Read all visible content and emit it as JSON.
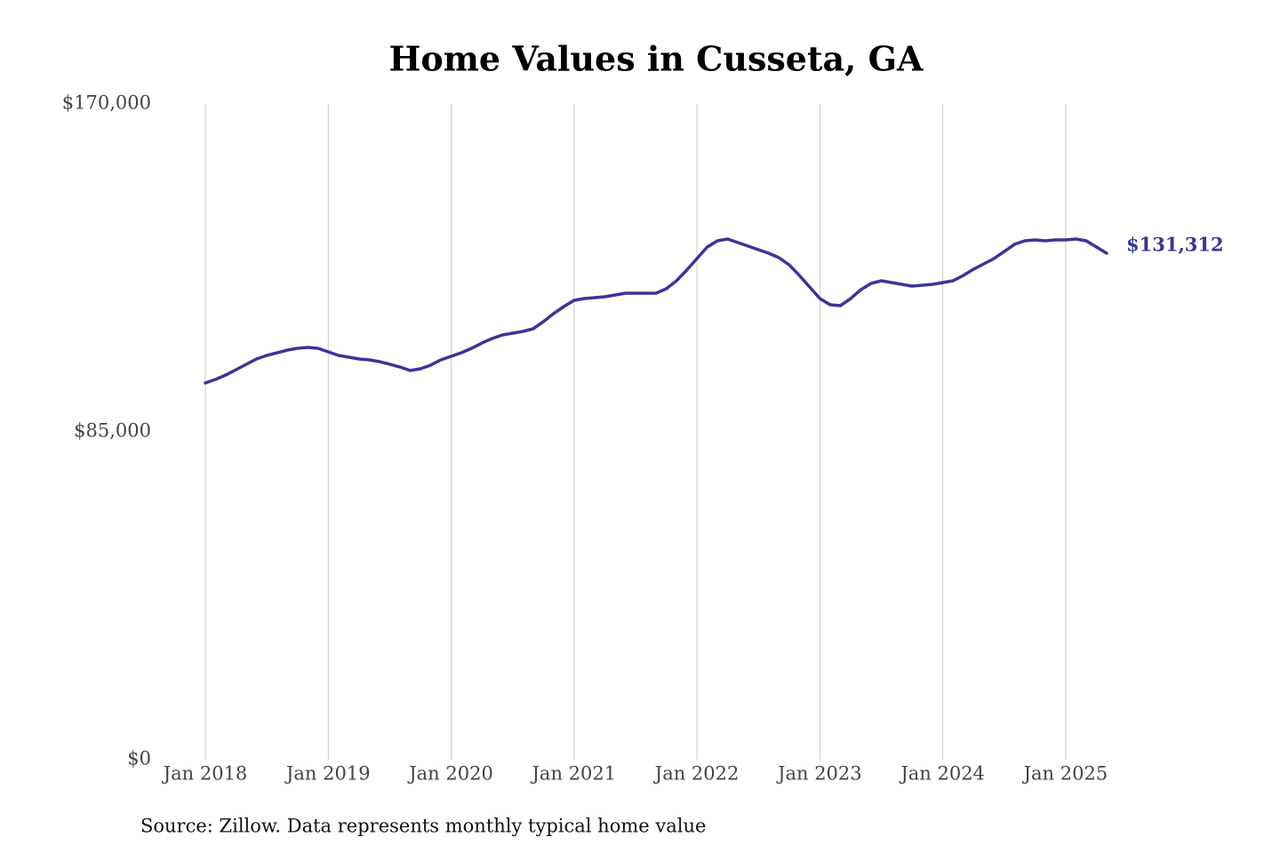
{
  "chart_data": {
    "type": "line",
    "title": "Home Values in Cusseta, GA",
    "source": "Source: Zillow. Data represents monthly typical home value",
    "x": [
      "2018-01",
      "2018-02",
      "2018-03",
      "2018-04",
      "2018-05",
      "2018-06",
      "2018-07",
      "2018-08",
      "2018-09",
      "2018-10",
      "2018-11",
      "2018-12",
      "2019-01",
      "2019-02",
      "2019-03",
      "2019-04",
      "2019-05",
      "2019-06",
      "2019-07",
      "2019-08",
      "2019-09",
      "2019-10",
      "2019-11",
      "2019-12",
      "2020-01",
      "2020-02",
      "2020-03",
      "2020-04",
      "2020-05",
      "2020-06",
      "2020-07",
      "2020-08",
      "2020-09",
      "2020-10",
      "2020-11",
      "2020-12",
      "2021-01",
      "2021-02",
      "2021-03",
      "2021-04",
      "2021-05",
      "2021-06",
      "2021-07",
      "2021-08",
      "2021-09",
      "2021-10",
      "2021-11",
      "2021-12",
      "2022-01",
      "2022-02",
      "2022-03",
      "2022-04",
      "2022-05",
      "2022-06",
      "2022-07",
      "2022-08",
      "2022-09",
      "2022-10",
      "2022-11",
      "2022-12",
      "2023-01",
      "2023-02",
      "2023-03",
      "2023-04",
      "2023-05",
      "2023-06",
      "2023-07",
      "2023-08",
      "2023-09",
      "2023-10",
      "2023-11",
      "2023-12",
      "2024-01",
      "2024-02",
      "2024-03",
      "2024-04",
      "2024-05",
      "2024-06",
      "2024-07",
      "2024-08",
      "2024-09",
      "2024-10",
      "2024-11",
      "2024-12",
      "2025-01",
      "2025-02",
      "2025-03",
      "2025-04",
      "2025-05"
    ],
    "series": [
      {
        "name": "Typical home value",
        "color": "#3a3596",
        "values": [
          97670,
          98590,
          99740,
          101120,
          102510,
          103890,
          104810,
          105500,
          106190,
          106650,
          106880,
          106650,
          105730,
          104810,
          104350,
          103890,
          103660,
          103200,
          102510,
          101810,
          100890,
          101350,
          102280,
          103660,
          104580,
          105500,
          106650,
          108030,
          109190,
          110110,
          110570,
          111030,
          111720,
          113560,
          115640,
          117480,
          119090,
          119550,
          119780,
          120010,
          120470,
          120930,
          120930,
          120930,
          120930,
          122090,
          124160,
          126920,
          129920,
          132910,
          134520,
          134990,
          134060,
          133140,
          132220,
          131300,
          130150,
          128300,
          125540,
          122550,
          119550,
          117940,
          117710,
          119550,
          121860,
          123470,
          124160,
          123700,
          123240,
          122780,
          123010,
          123240,
          123700,
          124160,
          125540,
          127150,
          128540,
          129920,
          131760,
          133600,
          134520,
          134750,
          134520,
          134750,
          134750,
          134990,
          134520,
          132910,
          131312
        ],
        "value_labels": [
          null,
          null,
          null,
          null,
          null,
          null,
          null,
          null,
          null,
          null,
          null,
          null,
          null,
          null,
          null,
          null,
          null,
          null,
          null,
          null,
          null,
          null,
          null,
          null,
          null,
          null,
          null,
          null,
          null,
          null,
          null,
          null,
          null,
          null,
          null,
          null,
          null,
          null,
          null,
          null,
          null,
          null,
          null,
          null,
          null,
          null,
          null,
          null,
          null,
          null,
          null,
          null,
          null,
          null,
          null,
          null,
          null,
          null,
          null,
          null,
          null,
          null,
          null,
          null,
          null,
          null,
          null,
          null,
          null,
          null,
          null,
          null,
          null,
          null,
          null,
          null,
          null,
          null,
          null,
          null,
          null,
          null,
          null,
          null,
          null,
          null,
          null,
          null,
          "$131,312"
        ]
      }
    ],
    "xlim": [
      "2018-01",
      "2025-05"
    ],
    "xticks": [
      {
        "value": "2018-01",
        "label": "Jan 2018"
      },
      {
        "value": "2019-01",
        "label": "Jan 2019"
      },
      {
        "value": "2020-01",
        "label": "Jan 2020"
      },
      {
        "value": "2021-01",
        "label": "Jan 2021"
      },
      {
        "value": "2022-01",
        "label": "Jan 2022"
      },
      {
        "value": "2023-01",
        "label": "Jan 2023"
      },
      {
        "value": "2024-01",
        "label": "Jan 2024"
      },
      {
        "value": "2025-01",
        "label": "Jan 2025"
      }
    ],
    "ylim": [
      0,
      170000
    ],
    "yticks": [
      {
        "value": 0,
        "label": "$0"
      },
      {
        "value": 85000,
        "label": "$85,000"
      },
      {
        "value": 170000,
        "label": "$170,000"
      }
    ],
    "grid": "x"
  }
}
